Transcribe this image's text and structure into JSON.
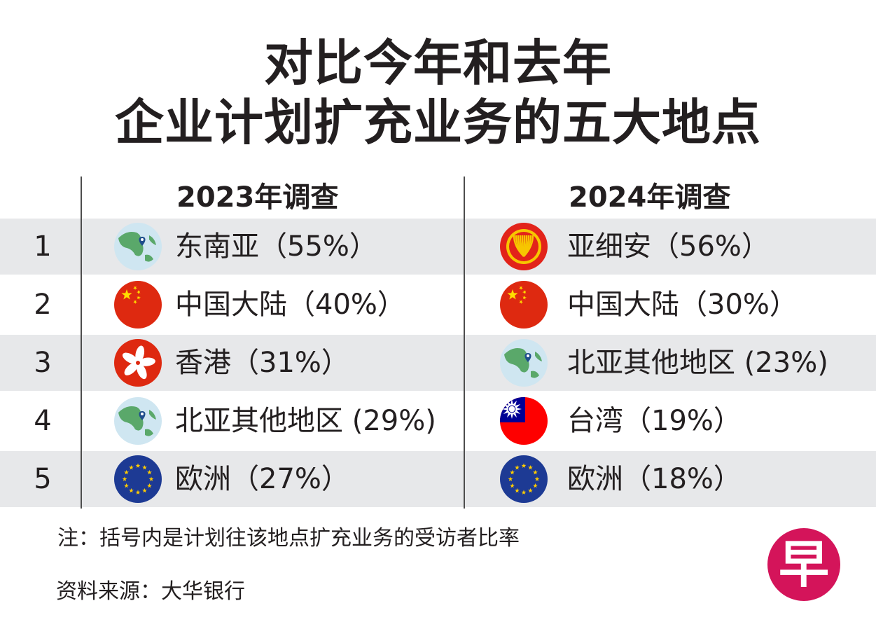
{
  "title": {
    "line1": "对比今年和去年",
    "line2": "企业计划扩充业务的五大地点"
  },
  "chart_data": {
    "type": "table",
    "columns": [
      {
        "header": "2023年调查"
      },
      {
        "header": "2024年调查"
      }
    ],
    "ranks": [
      "1",
      "2",
      "3",
      "4",
      "5"
    ],
    "rows_2023": [
      {
        "label": "东南亚（55%）",
        "region": "东南亚",
        "value": 55,
        "icon": "map-globe-icon"
      },
      {
        "label": "中国大陆（40%）",
        "region": "中国大陆",
        "value": 40,
        "icon": "china-flag-icon"
      },
      {
        "label": "香港（31%）",
        "region": "香港",
        "value": 31,
        "icon": "hong-kong-flag-icon"
      },
      {
        "label": "北亚其他地区 (29%)",
        "region": "北亚其他地区",
        "value": 29,
        "icon": "map-globe-icon"
      },
      {
        "label": "欧洲（27%）",
        "region": "欧洲",
        "value": 27,
        "icon": "eu-flag-icon"
      }
    ],
    "rows_2024": [
      {
        "label": "亚细安（56%）",
        "region": "亚细安",
        "value": 56,
        "icon": "asean-emblem-icon"
      },
      {
        "label": "中国大陆（30%）",
        "region": "中国大陆",
        "value": 30,
        "icon": "china-flag-icon"
      },
      {
        "label": "北亚其他地区 (23%)",
        "region": "北亚其他地区",
        "value": 23,
        "icon": "map-globe-icon"
      },
      {
        "label": "台湾（19%）",
        "region": "台湾",
        "value": 19,
        "icon": "taiwan-flag-icon"
      },
      {
        "label": "欧洲（18%）",
        "region": "欧洲",
        "value": 18,
        "icon": "eu-flag-icon"
      }
    ]
  },
  "footer": {
    "note": "注：括号内是计划往该地点扩充业务的受访者比率",
    "source": "资料来源：大华银行"
  },
  "logo": {
    "text": "早"
  },
  "colors": {
    "band": "#e7e8ea",
    "text": "#231f20",
    "china_red": "#de2910",
    "china_yellow": "#ffde00",
    "hk_red": "#de2910",
    "eu_blue": "#1d3a94",
    "eu_star": "#ffcc00",
    "asean_red": "#e2231a",
    "asean_yellow": "#f7c600",
    "taiwan_red": "#fe0000",
    "taiwan_blue": "#000095",
    "globe_sea": "#cfe6f1",
    "globe_land": "#5aa86a",
    "logo": "#d4145a"
  }
}
